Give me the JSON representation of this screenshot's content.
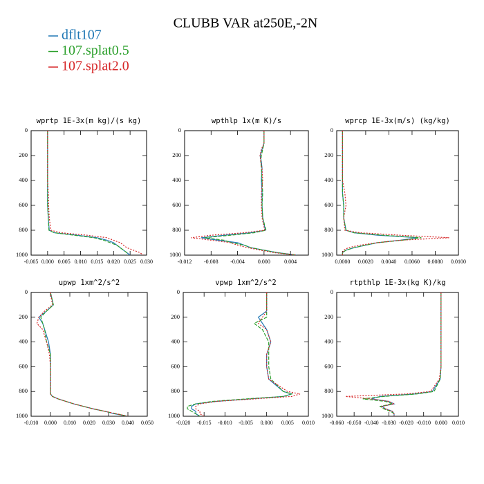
{
  "title": "CLUBB VAR at250E,-2N",
  "chart_data": [
    {
      "type": "line",
      "title": "wprtp  1E-3x(m kg)/(s kg)",
      "y": [
        0,
        100,
        150,
        200,
        250,
        300,
        400,
        500,
        600,
        700,
        800,
        820,
        840,
        860,
        880,
        900,
        920,
        940,
        960,
        980,
        1000
      ],
      "ylim": [
        1000,
        0
      ],
      "yticks": [
        0,
        200,
        400,
        600,
        800,
        1000
      ],
      "xlim": [
        -0.005,
        0.03
      ],
      "xticks": [
        {
          "value": -0.005,
          "label": "-0.005"
        },
        {
          "value": 0,
          "label": "0.000"
        },
        {
          "value": 0.005,
          "label": "0.005"
        },
        {
          "value": 0.01,
          "label": "0.010"
        },
        {
          "value": 0.015,
          "label": "0.015"
        },
        {
          "value": 0.02,
          "label": "0.020"
        },
        {
          "value": 0.025,
          "label": "0.025"
        },
        {
          "value": 0.03,
          "label": "0.030"
        }
      ],
      "series": [
        {
          "name": "dflt107",
          "color": "#1f77b4",
          "style": "solid",
          "values": [
            0,
            0,
            0,
            0,
            0,
            0,
            0,
            0,
            0,
            0.0002,
            0.0005,
            0.002,
            0.009,
            0.015,
            0.018,
            0.02,
            0.021,
            0.022,
            0.023,
            0.024,
            0.025
          ]
        },
        {
          "name": "107.splat0.5",
          "color": "#2ca02c",
          "style": "dashed",
          "values": [
            0,
            0,
            0,
            0,
            0,
            0,
            0,
            0,
            0,
            0.0002,
            0.0004,
            0.002,
            0.008,
            0.014,
            0.017,
            0.019,
            0.021,
            0.022,
            0.023,
            0.024,
            0.024
          ]
        },
        {
          "name": "107.splat2.0",
          "color": "#d62728",
          "style": "dotted",
          "values": [
            0,
            0,
            0,
            0,
            0,
            0,
            0,
            0.0002,
            0.0003,
            0.0005,
            0.001,
            0.004,
            0.012,
            0.018,
            0.02,
            0.022,
            0.023,
            0.024,
            0.026,
            0.028,
            0.029
          ]
        }
      ]
    },
    {
      "type": "line",
      "title": "wpthlp  1x(m K)/s",
      "y": [
        0,
        100,
        150,
        200,
        250,
        300,
        400,
        500,
        600,
        700,
        800,
        820,
        840,
        860,
        880,
        900,
        920,
        940,
        960,
        980,
        1000
      ],
      "ylim": [
        1000,
        0
      ],
      "yticks": [
        0,
        200,
        400,
        600,
        800,
        1000
      ],
      "xlim": [
        -0.012,
        0.0067
      ],
      "xticks": [
        {
          "value": -0.012,
          "label": "-0.012"
        },
        {
          "value": -0.008,
          "label": "-0.008"
        },
        {
          "value": -0.004,
          "label": "-0.004"
        },
        {
          "value": 0,
          "label": "0.000"
        },
        {
          "value": 0.004,
          "label": "0.004"
        }
      ],
      "series": [
        {
          "name": "dflt107",
          "color": "#1f77b4",
          "style": "solid",
          "values": [
            0,
            0,
            -0.0003,
            -0.0006,
            -0.0004,
            -0.0003,
            -0.0004,
            -0.0003,
            -0.0003,
            -0.0002,
            0.0002,
            -0.002,
            -0.006,
            -0.0095,
            -0.007,
            -0.004,
            -0.003,
            -0.002,
            0,
            0.002,
            0.005
          ]
        },
        {
          "name": "107.splat0.5",
          "color": "#2ca02c",
          "style": "dashed",
          "values": [
            0,
            0,
            -0.0002,
            -0.0004,
            -0.0005,
            -0.0004,
            -0.0003,
            -0.0002,
            -0.0003,
            -0.0002,
            0.0003,
            -0.0015,
            -0.005,
            -0.009,
            -0.006,
            -0.005,
            -0.003,
            -0.002,
            0,
            0.002,
            0.005
          ]
        },
        {
          "name": "107.splat2.0",
          "color": "#d62728",
          "style": "dotted",
          "values": [
            0,
            0,
            -0.0004,
            -0.0006,
            -0.0005,
            -0.0003,
            -0.0002,
            -0.0004,
            -0.0004,
            -0.0003,
            0.0001,
            -0.003,
            -0.008,
            -0.011,
            -0.008,
            -0.005,
            -0.004,
            -0.0025,
            -0.0005,
            0.0015,
            0.005
          ]
        }
      ]
    },
    {
      "type": "line",
      "title": "wprcp  1E-3x(m/s) (kg/kg)",
      "y": [
        0,
        100,
        150,
        200,
        250,
        300,
        400,
        500,
        600,
        700,
        800,
        820,
        840,
        860,
        880,
        900,
        920,
        940,
        960,
        980,
        1000
      ],
      "ylim": [
        1000,
        0
      ],
      "yticks": [
        0,
        200,
        400,
        600,
        800,
        1000
      ],
      "xlim": [
        -0.0005,
        0.01
      ],
      "xticks": [
        {
          "value": 0,
          "label": "0.0000"
        },
        {
          "value": 0.002,
          "label": "0.0020"
        },
        {
          "value": 0.004,
          "label": "0.0040"
        },
        {
          "value": 0.006,
          "label": "0.0060"
        },
        {
          "value": 0.008,
          "label": "0.0080"
        },
        {
          "value": 0.01,
          "label": "0.0100"
        }
      ],
      "series": [
        {
          "name": "dflt107",
          "color": "#1f77b4",
          "style": "solid",
          "values": [
            0,
            0,
            0,
            0,
            0,
            0,
            0,
            0,
            0.0001,
            0.0001,
            0.0003,
            0.001,
            0.003,
            0.0065,
            0.005,
            0.003,
            0.002,
            0.001,
            0.0003,
            0,
            0
          ]
        },
        {
          "name": "107.splat0.5",
          "color": "#2ca02c",
          "style": "dashed",
          "values": [
            0,
            0,
            0,
            0,
            0,
            0,
            0,
            0,
            0.0001,
            0.0001,
            0.0003,
            0.001,
            0.0035,
            0.0068,
            0.0052,
            0.003,
            0.002,
            0.001,
            0.0003,
            0,
            0
          ]
        },
        {
          "name": "107.splat2.0",
          "color": "#d62728",
          "style": "dotted",
          "values": [
            0,
            0,
            0,
            0,
            0,
            0,
            0,
            0.0002,
            0.0003,
            0.0001,
            0.0002,
            0.0015,
            0.005,
            0.0092,
            0.005,
            0.003,
            0.0015,
            0.0005,
            0.0001,
            0,
            0
          ]
        }
      ]
    },
    {
      "type": "line",
      "title": "upwp  1xm^2/s^2",
      "y": [
        0,
        100,
        150,
        200,
        250,
        300,
        400,
        500,
        600,
        700,
        800,
        820,
        840,
        860,
        880,
        900,
        920,
        940,
        960,
        980,
        1000
      ],
      "ylim": [
        1000,
        0
      ],
      "yticks": [
        0,
        200,
        400,
        600,
        800,
        1000
      ],
      "xlim": [
        -0.01,
        0.05
      ],
      "xticks": [
        {
          "value": -0.01,
          "label": "-0.010"
        },
        {
          "value": 0,
          "label": "0.000"
        },
        {
          "value": 0.01,
          "label": "0.010"
        },
        {
          "value": 0.02,
          "label": "0.020"
        },
        {
          "value": 0.03,
          "label": "0.030"
        },
        {
          "value": 0.04,
          "label": "0.040"
        },
        {
          "value": 0.05,
          "label": "0.050"
        }
      ],
      "series": [
        {
          "name": "dflt107",
          "color": "#1f77b4",
          "style": "solid",
          "values": [
            0,
            0.0015,
            -0.002,
            -0.006,
            -0.004,
            -0.003,
            -0.001,
            0,
            0,
            0,
            0,
            0,
            0.001,
            0.004,
            0.008,
            0.012,
            0.017,
            0.022,
            0.028,
            0.033,
            0.04
          ]
        },
        {
          "name": "107.splat0.5",
          "color": "#2ca02c",
          "style": "dashed",
          "values": [
            0,
            0.0015,
            -0.002,
            -0.005,
            -0.004,
            -0.003,
            -0.002,
            0,
            0,
            0,
            0,
            0,
            0.001,
            0.004,
            0.008,
            0.012,
            0.017,
            0.022,
            0.028,
            0.034,
            0.04
          ]
        },
        {
          "name": "107.splat2.0",
          "color": "#d62728",
          "style": "dotted",
          "values": [
            0,
            0.001,
            -0.003,
            -0.006,
            -0.007,
            -0.004,
            -0.002,
            -0.0005,
            0,
            0,
            0,
            0,
            0.001,
            0.004,
            0.008,
            0.012,
            0.017,
            0.022,
            0.028,
            0.034,
            0.04
          ]
        }
      ]
    },
    {
      "type": "line",
      "title": "vpwp  1xm^2/s^2",
      "y": [
        0,
        100,
        150,
        200,
        250,
        300,
        400,
        500,
        600,
        700,
        800,
        820,
        840,
        860,
        880,
        900,
        920,
        940,
        960,
        980,
        1000
      ],
      "ylim": [
        1000,
        0
      ],
      "yticks": [
        0,
        200,
        400,
        600,
        800,
        1000
      ],
      "xlim": [
        -0.02,
        0.01
      ],
      "xticks": [
        {
          "value": -0.02,
          "label": "-0.020"
        },
        {
          "value": -0.015,
          "label": "-0.015"
        },
        {
          "value": -0.01,
          "label": "-0.010"
        },
        {
          "value": -0.005,
          "label": "-0.005"
        },
        {
          "value": 0,
          "label": "0.000"
        },
        {
          "value": 0.005,
          "label": "0.005"
        },
        {
          "value": 0.01,
          "label": "0.010"
        }
      ],
      "series": [
        {
          "name": "dflt107",
          "color": "#1f77b4",
          "style": "solid",
          "values": [
            0,
            0,
            0,
            -0.002,
            -0.001,
            0,
            0.001,
            0,
            0,
            0.0005,
            0.004,
            0.006,
            0.004,
            -0.004,
            -0.012,
            -0.017,
            -0.018,
            -0.018,
            -0.017,
            -0.017,
            -0.016
          ]
        },
        {
          "name": "107.splat0.5",
          "color": "#2ca02c",
          "style": "dashed",
          "values": [
            0,
            0,
            0,
            0,
            -0.003,
            -0.001,
            0.0005,
            0.0005,
            0.0005,
            0.001,
            0.004,
            0.006,
            0.004,
            -0.005,
            -0.013,
            -0.017,
            -0.019,
            -0.019,
            -0.018,
            -0.017,
            -0.016
          ]
        },
        {
          "name": "107.splat2.0",
          "color": "#d62728",
          "style": "dotted",
          "values": [
            0,
            0,
            0,
            -0.001,
            -0.002,
            0,
            0.001,
            0,
            0,
            0.0005,
            0.005,
            0.008,
            0.006,
            -0.003,
            -0.012,
            -0.016,
            -0.017,
            -0.017,
            -0.016,
            -0.016,
            -0.015
          ]
        }
      ]
    },
    {
      "type": "line",
      "title": "rtpthlp  1E-3x(kg K)/kg",
      "y": [
        0,
        100,
        150,
        200,
        250,
        300,
        400,
        500,
        600,
        700,
        800,
        820,
        840,
        860,
        880,
        900,
        920,
        940,
        960,
        980,
        1000
      ],
      "ylim": [
        1000,
        0
      ],
      "yticks": [
        0,
        200,
        400,
        600,
        800,
        1000
      ],
      "xlim": [
        -0.06,
        0.01
      ],
      "xticks": [
        {
          "value": -0.06,
          "label": "-0.060"
        },
        {
          "value": -0.05,
          "label": "-0.050"
        },
        {
          "value": -0.04,
          "label": "-0.040"
        },
        {
          "value": -0.03,
          "label": "-0.030"
        },
        {
          "value": -0.02,
          "label": "-0.020"
        },
        {
          "value": -0.01,
          "label": "-0.010"
        },
        {
          "value": 0,
          "label": "0.000"
        },
        {
          "value": 0.01,
          "label": "0.010"
        }
      ],
      "series": [
        {
          "name": "dflt107",
          "color": "#1f77b4",
          "style": "solid",
          "values": [
            0,
            0,
            0,
            0,
            0,
            0,
            0,
            0,
            0,
            -0.0005,
            -0.005,
            -0.015,
            -0.035,
            -0.04,
            -0.03,
            -0.027,
            -0.034,
            -0.032,
            -0.028,
            -0.027,
            -0.027
          ]
        },
        {
          "name": "107.splat0.5",
          "color": "#2ca02c",
          "style": "dashed",
          "values": [
            0,
            0,
            0,
            0,
            0,
            0,
            0,
            0,
            0,
            -0.0005,
            -0.004,
            -0.014,
            -0.033,
            -0.045,
            -0.032,
            -0.028,
            -0.035,
            -0.033,
            -0.029,
            -0.027,
            -0.027
          ]
        },
        {
          "name": "107.splat2.0",
          "color": "#d62728",
          "style": "dotted",
          "values": [
            0,
            0,
            0,
            0,
            0,
            0,
            0,
            0,
            0,
            -0.001,
            -0.006,
            -0.02,
            -0.055,
            -0.04,
            -0.03,
            -0.027,
            -0.034,
            -0.032,
            -0.028,
            -0.027,
            -0.027
          ]
        }
      ]
    }
  ]
}
